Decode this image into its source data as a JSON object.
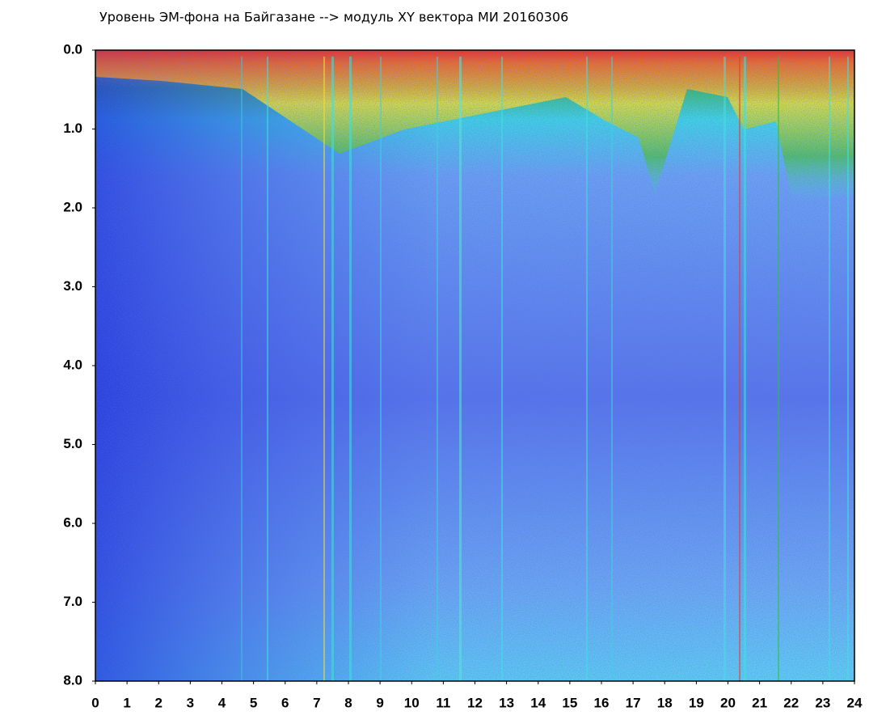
{
  "chart_data": {
    "type": "heatmap",
    "title": "Уровень ЭМ-фона на Байгазане  --> модуль XY вектора МИ  20160306",
    "xlim": [
      0,
      24
    ],
    "xticks": [
      0,
      1,
      2,
      3,
      4,
      5,
      6,
      7,
      8,
      9,
      10,
      11,
      12,
      13,
      14,
      15,
      16,
      17,
      18,
      19,
      20,
      21,
      22,
      23,
      24
    ],
    "ylim": [
      0,
      8
    ],
    "y_reversed": true,
    "yticks": [
      {
        "value": 0,
        "label": "0.0"
      },
      {
        "value": 1,
        "label": "1.0"
      },
      {
        "value": 2,
        "label": "2.0"
      },
      {
        "value": 3,
        "label": "3.0"
      },
      {
        "value": 4,
        "label": "4.0"
      },
      {
        "value": 5,
        "label": "5.0"
      },
      {
        "value": 6,
        "label": "6.0"
      },
      {
        "value": 7,
        "label": "7.0"
      },
      {
        "value": 8,
        "label": "8.0"
      }
    ]
  }
}
